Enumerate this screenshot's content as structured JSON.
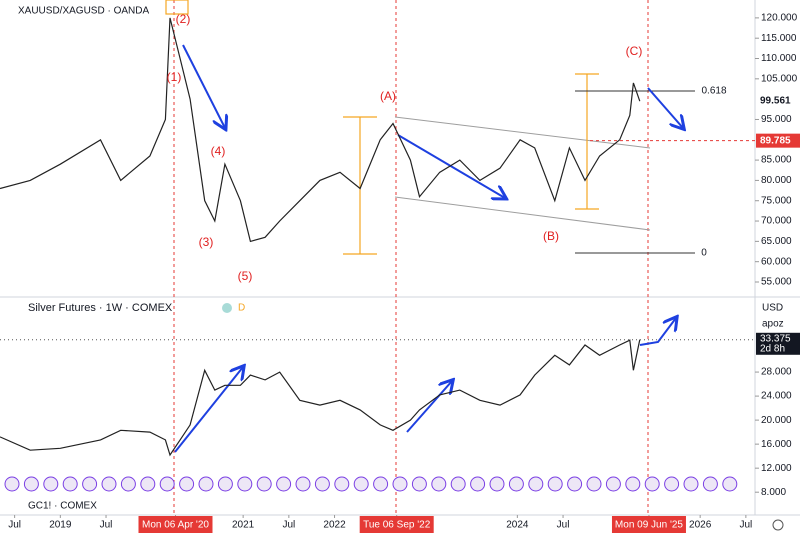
{
  "chart_data": [
    {
      "type": "line",
      "title": "XAUUSD/XAGUSD · OANDA",
      "color": "#222222",
      "x": [
        2018.34,
        2018.67,
        2019.0,
        2019.44,
        2019.66,
        2019.98,
        2020.15,
        2020.2,
        2020.31,
        2020.42,
        2020.58,
        2020.69,
        2020.8,
        2020.97,
        2021.08,
        2021.24,
        2021.4,
        2021.62,
        2021.84,
        2022.06,
        2022.28,
        2022.5,
        2022.64,
        2022.83,
        2022.93,
        2023.15,
        2023.37,
        2023.59,
        2023.81,
        2024.03,
        2024.19,
        2024.41,
        2024.57,
        2024.74,
        2024.9,
        2025.12,
        2025.23,
        2025.27,
        2025.34
      ],
      "values": [
        78,
        80,
        84,
        90,
        80,
        86,
        95,
        120,
        110,
        100,
        75,
        70,
        84,
        75,
        65,
        66,
        70,
        75,
        80,
        82,
        78,
        90,
        94,
        85,
        76,
        82,
        85,
        80,
        83,
        90,
        88,
        75,
        88,
        80,
        86,
        90,
        96,
        104,
        99.5
      ],
      "xlim": [
        2018.34,
        2026.6
      ],
      "ylim": [
        51.8,
        124.4
      ],
      "yticks": [
        {
          "value": 55,
          "label": "55.000"
        },
        {
          "value": 60,
          "label": "60.000"
        },
        {
          "value": 65,
          "label": "65.000"
        },
        {
          "value": 70,
          "label": "70.000"
        },
        {
          "value": 75,
          "label": "75.000"
        },
        {
          "value": 80,
          "label": "80.000"
        },
        {
          "value": 85,
          "label": "85.000"
        },
        {
          "value": 95,
          "label": "95.000"
        },
        {
          "value": 105,
          "label": "105.000"
        },
        {
          "value": 110,
          "label": "110.000"
        },
        {
          "value": 115,
          "label": "115.000"
        },
        {
          "value": 120,
          "label": "120.000"
        }
      ],
      "price_labels": [
        99.561,
        89.785
      ],
      "annotations": [
        "(2)",
        "(1)",
        "(4)",
        "(3)",
        "(5)",
        "(A)",
        "(B)",
        "(C)",
        "0.618",
        "0"
      ]
    },
    {
      "type": "line",
      "title": "Silver Futures · 1W · COMEX",
      "interval_badge": "D",
      "color": "#222222",
      "x": [
        2018.34,
        2018.67,
        2019.0,
        2019.44,
        2019.66,
        2019.98,
        2020.15,
        2020.2,
        2020.31,
        2020.42,
        2020.58,
        2020.69,
        2020.8,
        2020.97,
        2021.08,
        2021.24,
        2021.4,
        2021.62,
        2021.84,
        2022.06,
        2022.28,
        2022.5,
        2022.64,
        2022.83,
        2022.93,
        2023.15,
        2023.37,
        2023.59,
        2023.81,
        2024.03,
        2024.19,
        2024.41,
        2024.57,
        2024.74,
        2024.9,
        2025.12,
        2025.23,
        2025.27,
        2025.34
      ],
      "values": [
        17.2,
        15,
        15.3,
        16.7,
        18.3,
        18,
        16.7,
        14.2,
        16.7,
        19.2,
        28.3,
        25,
        25.8,
        25.8,
        27.5,
        26.7,
        28,
        23.3,
        22.5,
        23.3,
        21.7,
        19.2,
        18.3,
        20,
        21.7,
        24.2,
        25,
        23.3,
        22.5,
        24.2,
        27.5,
        30.8,
        29.2,
        32.5,
        30.8,
        32.5,
        33.3,
        28.3,
        33.4
      ],
      "xlim": [
        2018.34,
        2026.6
      ],
      "ylim": [
        6.7,
        40
      ],
      "yticks": [
        {
          "value": 8,
          "label": "8.000"
        },
        {
          "value": 12,
          "label": "12.000"
        },
        {
          "value": 16,
          "label": "16.000"
        },
        {
          "value": 20,
          "label": "20.000"
        },
        {
          "value": 24,
          "label": "24.000"
        },
        {
          "value": 28,
          "label": "28.000"
        }
      ],
      "price_label": 33.375,
      "countdown": "2d 8h",
      "currency": "USD",
      "unit": "apoz",
      "xticks": [
        {
          "value": 2018.5,
          "label": "Jul"
        },
        {
          "value": 2019,
          "label": "2019"
        },
        {
          "value": 2019.5,
          "label": "Jul"
        },
        {
          "value": 2020.26,
          "label": "Mon 06 Apr '20"
        },
        {
          "value": 2021,
          "label": "2021"
        },
        {
          "value": 2021.5,
          "label": "Jul"
        },
        {
          "value": 2022,
          "label": "2022"
        },
        {
          "value": 2022.68,
          "label": "Tue 06 Sep '22"
        },
        {
          "value": 2024,
          "label": "2024"
        },
        {
          "value": 2024.5,
          "label": "Jul"
        },
        {
          "value": 2025.44,
          "label": "Mon 09 Jun '25"
        },
        {
          "value": 2026,
          "label": "2026"
        },
        {
          "value": 2026.5,
          "label": "Jul"
        }
      ]
    }
  ],
  "footer": "GC1! · COMEX"
}
